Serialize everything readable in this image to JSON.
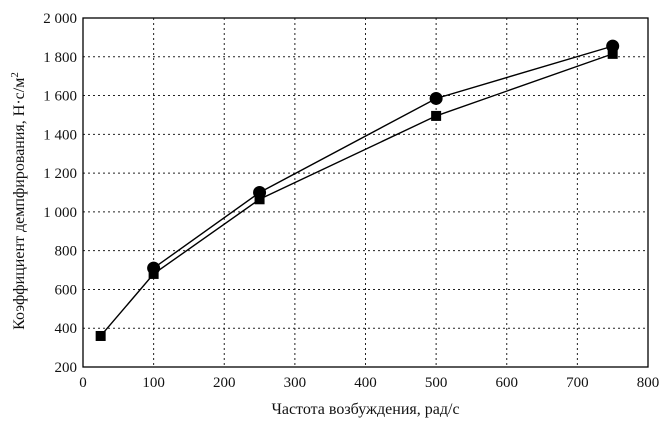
{
  "chart_data": {
    "type": "line",
    "xlabel": "Частота возбуждения, рад/с",
    "ylabel_main": "Коэффициент демпфирования, Н·с/м",
    "ylabel_sup": "2",
    "xlim": [
      0,
      800
    ],
    "ylim": [
      200,
      2000
    ],
    "x_ticks": [
      0,
      100,
      200,
      300,
      400,
      500,
      600,
      700,
      800
    ],
    "x_tick_labels": [
      "0",
      "100",
      "200",
      "300",
      "400",
      "500",
      "600",
      "700",
      "800"
    ],
    "y_ticks": [
      200,
      400,
      600,
      800,
      1000,
      1200,
      1400,
      1600,
      1800,
      2000
    ],
    "y_tick_labels": [
      "200",
      "400",
      "600",
      "800",
      "1 000",
      "1 200",
      "1 400",
      "1 600",
      "1 800",
      "2 000"
    ],
    "grid": true,
    "grid_style": "dotted",
    "series": [
      {
        "marker": "circle",
        "color": "#000000",
        "points": [
          [
            100,
            710
          ],
          [
            250,
            1100
          ],
          [
            500,
            1585
          ],
          [
            750,
            1855
          ]
        ]
      },
      {
        "marker": "square",
        "color": "#000000",
        "points": [
          [
            25,
            360
          ],
          [
            100,
            680
          ],
          [
            250,
            1065
          ],
          [
            500,
            1495
          ],
          [
            750,
            1815
          ]
        ]
      }
    ]
  }
}
